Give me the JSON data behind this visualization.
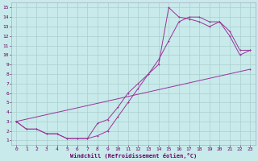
{
  "xlabel": "Windchill (Refroidissement éolien,°C)",
  "bg_color": "#c8eaea",
  "grid_color": "#aacece",
  "line_color": "#993399",
  "xlim": [
    -0.5,
    23.5
  ],
  "ylim": [
    0.5,
    15.5
  ],
  "xticks": [
    0,
    1,
    2,
    3,
    4,
    5,
    6,
    7,
    8,
    9,
    10,
    11,
    12,
    13,
    14,
    15,
    16,
    17,
    18,
    19,
    20,
    21,
    22,
    23
  ],
  "yticks": [
    1,
    2,
    3,
    4,
    5,
    6,
    7,
    8,
    9,
    10,
    11,
    12,
    13,
    14,
    15
  ],
  "line1_x": [
    0,
    1,
    2,
    3,
    4,
    5,
    6,
    7,
    8,
    9,
    10,
    11,
    12,
    13,
    14,
    15,
    16,
    17,
    18,
    19,
    20,
    21,
    22,
    23
  ],
  "line1_y": [
    3.0,
    2.2,
    2.2,
    1.7,
    1.7,
    1.2,
    1.2,
    1.2,
    2.8,
    3.2,
    4.5,
    6.0,
    7.0,
    8.0,
    9.5,
    11.5,
    13.5,
    14.0,
    14.0,
    13.5,
    13.5,
    12.5,
    10.5,
    10.5
  ],
  "line2_x": [
    0,
    1,
    2,
    3,
    4,
    5,
    6,
    7,
    8,
    9,
    10,
    11,
    12,
    13,
    14,
    15,
    16,
    17,
    18,
    19,
    20,
    21,
    22,
    23
  ],
  "line2_y": [
    3.0,
    2.2,
    2.2,
    1.7,
    1.7,
    1.2,
    1.2,
    1.2,
    1.5,
    2.0,
    3.5,
    5.0,
    6.5,
    8.0,
    9.0,
    15.0,
    14.0,
    13.8,
    13.5,
    13.0,
    13.5,
    12.0,
    10.0,
    10.5
  ],
  "line3_x": [
    0,
    23
  ],
  "line3_y": [
    3.0,
    8.5
  ]
}
